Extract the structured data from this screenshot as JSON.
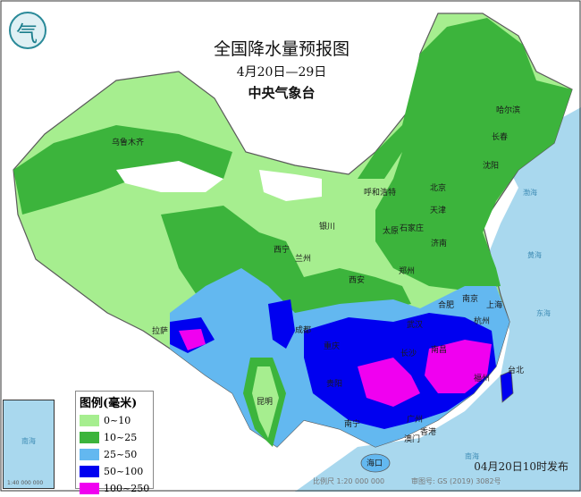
{
  "header": {
    "title": "全国降水量预报图",
    "date_range": "4月20日—29日",
    "issuer": "中央气象台"
  },
  "logo": {
    "icon": "cma-logo-icon",
    "glyph": "气"
  },
  "legend": {
    "title": "图例(毫米)",
    "items": [
      {
        "label": "0~10",
        "color": "#a6ee8f"
      },
      {
        "label": "10~25",
        "color": "#3cb43c"
      },
      {
        "label": "25~50",
        "color": "#63b8f0"
      },
      {
        "label": "50~100",
        "color": "#0000f0"
      },
      {
        "label": "100~250",
        "color": "#f000f0"
      }
    ]
  },
  "cities": [
    "乌鲁木齐",
    "哈尔滨",
    "长春",
    "沈阳",
    "呼和浩特",
    "北京",
    "天津",
    "石家庄",
    "太原",
    "济南",
    "银川",
    "西宁",
    "兰州",
    "郑州",
    "西安",
    "南京",
    "合肥",
    "上海",
    "杭州",
    "武汉",
    "成都",
    "拉萨",
    "重庆",
    "长沙",
    "南昌",
    "贵阳",
    "福州",
    "台北",
    "昆明",
    "南宁",
    "广州",
    "香港",
    "澳门",
    "海口"
  ],
  "seas": [
    "渤海",
    "黄海",
    "东海",
    "南海"
  ],
  "inset": {
    "sea_label": "南海",
    "scale": "1:40 000 000"
  },
  "footer": {
    "issued": "04月20日10时发布",
    "scale": "比例尺 1:20 000 000",
    "approval": "审图号: GS (2019) 3082号"
  },
  "colors": {
    "sea": "#a9d8ee",
    "border": "#6a6a6a",
    "no_rain": "#ffffff"
  }
}
